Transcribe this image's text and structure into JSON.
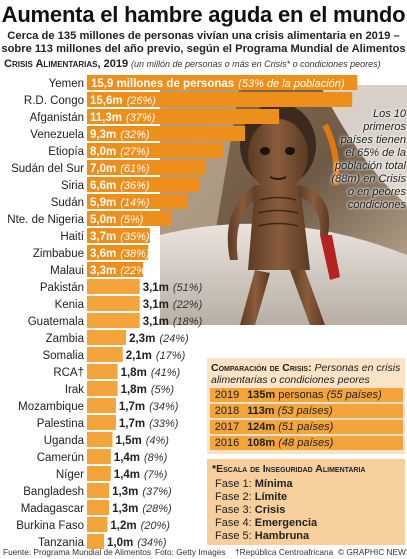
{
  "title": "Aumenta el hambre aguda en el mundo",
  "subtitle_line1": "Cerca de 135 millones de personas vivían una crisis alimentaria en 2019 –",
  "subtitle_line2": "sobre 113 millones del año previo, según el Programa Mundial de Alimentos",
  "section_caption": "Crisis Alimentarias, 2019",
  "section_note": "(un millón de personas o más en Crisis* o condiciones peores)",
  "side_note": "Los 10 primeros países tienen el 65% de la población total (88m) en Crisis o en peores condiciones",
  "colors": {
    "bar_dark": "#ee8f1b",
    "bar_light": "#f5a43c",
    "comp_bg": "#fbe3c8",
    "scale_bg": "#f7cf9d"
  },
  "chart_data": {
    "type": "bar",
    "orientation": "horizontal",
    "unit": "millones de personas",
    "categories": [
      "Yemen",
      "R.D. Congo",
      "Afganistán",
      "Venezuela",
      "Etiopía",
      "Sudán del Sur",
      "Siria",
      "Sudán",
      "Nte. de Nigeria",
      "Haití",
      "Zimbabue",
      "Malaui",
      "Pakistán",
      "Kenia",
      "Guatemala",
      "Zambia",
      "Somalia",
      "RCA†",
      "Irak",
      "Mozambique",
      "Palestina",
      "Uganda",
      "Camerún",
      "Níger",
      "Bangladesh",
      "Madagascar",
      "Burkina Faso",
      "Tanzania"
    ],
    "values": [
      15.9,
      15.6,
      11.3,
      9.3,
      8.0,
      7.0,
      6.6,
      5.9,
      5.0,
      3.7,
      3.6,
      3.3,
      3.1,
      3.1,
      3.1,
      2.3,
      2.1,
      1.8,
      1.8,
      1.7,
      1.7,
      1.5,
      1.4,
      1.4,
      1.3,
      1.3,
      1.2,
      1.0
    ],
    "value_labels": [
      "15,9 millones de personas",
      "15,6m",
      "11,3m",
      "9,3m",
      "8,0m",
      "7,0m",
      "6,6m",
      "5,9m",
      "5,0m",
      "3,7m",
      "3,6m",
      "3,3m",
      "3,1m",
      "3,1m",
      "3,1m",
      "2,3m",
      "2,1m",
      "1,8m",
      "1,8m",
      "1,7m",
      "1,7m",
      "1,5m",
      "1,4m",
      "1,4m",
      "1,3m",
      "1,3m",
      "1,2m",
      "1,0m"
    ],
    "percent_labels": [
      "(53% de la población)",
      "(26%)",
      "(37%)",
      "(32%)",
      "(27%)",
      "(61%)",
      "(36%)",
      "(14%)",
      "(5%)",
      "(35%)",
      "(38%)",
      "(22%)",
      "(51%)",
      "(22%)",
      "(18%)",
      "(24%)",
      "(17%)",
      "(41%)",
      "(5%)",
      "(34%)",
      "(33%)",
      "(4%)",
      "(8%)",
      "(7%)",
      "(37%)",
      "(28%)",
      "(20%)",
      "(34%)"
    ]
  },
  "comparison": {
    "caption": "Comparación de Crisis:",
    "text": "Personas en crisis alimentarias o condiciones peores",
    "rows": [
      {
        "year": "2019",
        "value": "135m",
        "unit": "personas",
        "extra": "(55 países)"
      },
      {
        "year": "2018",
        "value": "113m",
        "unit": "",
        "extra": "(53 países)"
      },
      {
        "year": "2017",
        "value": "124m",
        "unit": "",
        "extra": "(51 países)"
      },
      {
        "year": "2016",
        "value": "108m",
        "unit": "",
        "extra": "(48 países)"
      }
    ]
  },
  "scale": {
    "title": "*Escala de Inseguridad Alimentaria",
    "phases": [
      {
        "label": "Fase 1:",
        "name": "Mínima"
      },
      {
        "label": "Fase 2:",
        "name": "Límite"
      },
      {
        "label": "Fase 3:",
        "name": "Crisis"
      },
      {
        "label": "Fase 4:",
        "name": "Emergencia"
      },
      {
        "label": "Fase 5:",
        "name": "Hambruna"
      }
    ]
  },
  "footer": {
    "source": "Fuente: Programa Mundial de Alimentos",
    "photo": "Foto: Getty Images",
    "note": "†República Centroafricana",
    "credit": "© GRAPHIC NEWS"
  }
}
